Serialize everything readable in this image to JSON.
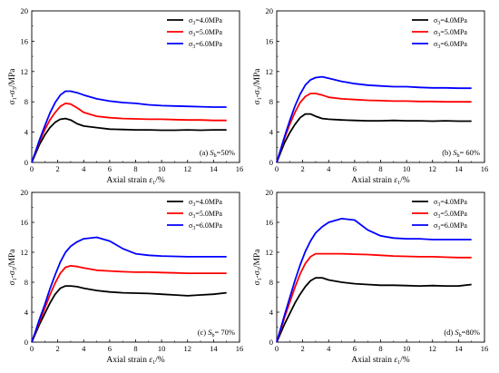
{
  "chart_data": [
    {
      "type": "line",
      "xlabel": "Axial strain ε₁/%",
      "ylabel": "σ₁-σ₃/MPa",
      "xlim": [
        0,
        16
      ],
      "ylim": [
        0,
        20
      ],
      "xticks": [
        0,
        2,
        4,
        6,
        8,
        10,
        12,
        14,
        16
      ],
      "yticks": [
        0,
        4,
        8,
        12,
        16,
        20
      ],
      "annotation": {
        "prefix": "(a) ",
        "var": "S",
        "sub": "b",
        "value": "=50%"
      },
      "legend_position": "top-right",
      "series": [
        {
          "name": "σ3=4.0MPa",
          "color": "#000000",
          "x": [
            0,
            0.3,
            0.6,
            1,
            1.4,
            1.8,
            2.2,
            2.6,
            3,
            3.5,
            4,
            5,
            6,
            7,
            8,
            9,
            10,
            11,
            12,
            13,
            14,
            15
          ],
          "y": [
            0,
            1.2,
            2.4,
            3.6,
            4.6,
            5.3,
            5.7,
            5.8,
            5.6,
            5.1,
            4.8,
            4.6,
            4.4,
            4.35,
            4.3,
            4.3,
            4.25,
            4.25,
            4.3,
            4.25,
            4.3,
            4.3
          ]
        },
        {
          "name": "σ3=5.0MPa",
          "color": "#ff0000",
          "x": [
            0,
            0.3,
            0.6,
            1,
            1.4,
            1.8,
            2.2,
            2.6,
            3,
            3.5,
            4,
            5,
            6,
            7,
            8,
            9,
            10,
            11,
            12,
            13,
            14,
            15
          ],
          "y": [
            0,
            1.4,
            2.8,
            4.3,
            5.6,
            6.6,
            7.4,
            7.8,
            7.7,
            7.2,
            6.6,
            6.1,
            5.9,
            5.8,
            5.75,
            5.7,
            5.7,
            5.65,
            5.6,
            5.6,
            5.55,
            5.55
          ]
        },
        {
          "name": "σ3=6.0MPa",
          "color": "#0000ff",
          "x": [
            0,
            0.3,
            0.6,
            1,
            1.4,
            1.8,
            2.2,
            2.6,
            3,
            3.5,
            4,
            5,
            6,
            7,
            8,
            9,
            10,
            11,
            12,
            13,
            14,
            15
          ],
          "y": [
            0,
            1.5,
            3,
            4.8,
            6.5,
            7.9,
            8.9,
            9.4,
            9.4,
            9.2,
            8.9,
            8.4,
            8.1,
            7.9,
            7.8,
            7.6,
            7.5,
            7.45,
            7.4,
            7.35,
            7.3,
            7.3
          ]
        }
      ]
    },
    {
      "type": "line",
      "xlabel": "Axial strain ε₁/%",
      "ylabel": "σ₁-σ₃/MPa",
      "xlim": [
        0,
        16
      ],
      "ylim": [
        0,
        20
      ],
      "xticks": [
        0,
        2,
        4,
        6,
        8,
        10,
        12,
        14,
        16
      ],
      "yticks": [
        0,
        4,
        8,
        12,
        16,
        20
      ],
      "annotation": {
        "prefix": "(b) ",
        "var": "S",
        "sub": "b",
        "value": "= 60%"
      },
      "legend_position": "top-right",
      "series": [
        {
          "name": "σ3=4.0MPa",
          "color": "#000000",
          "x": [
            0,
            0.3,
            0.6,
            1,
            1.4,
            1.8,
            2.2,
            2.6,
            3,
            3.5,
            4,
            5,
            6,
            7,
            8,
            9,
            10,
            11,
            12,
            13,
            14,
            15
          ],
          "y": [
            0,
            1.3,
            2.6,
            3.9,
            5,
            5.9,
            6.4,
            6.4,
            6.1,
            5.8,
            5.7,
            5.6,
            5.55,
            5.5,
            5.5,
            5.55,
            5.5,
            5.5,
            5.45,
            5.5,
            5.45,
            5.45
          ]
        },
        {
          "name": "σ3=5.0MPa",
          "color": "#ff0000",
          "x": [
            0,
            0.3,
            0.6,
            1,
            1.4,
            1.8,
            2.2,
            2.6,
            3,
            3.5,
            4,
            5,
            6,
            7,
            8,
            9,
            10,
            11,
            12,
            13,
            14,
            15
          ],
          "y": [
            0,
            1.6,
            3.2,
            5,
            6.6,
            7.9,
            8.7,
            9.1,
            9.1,
            8.9,
            8.6,
            8.4,
            8.3,
            8.2,
            8.15,
            8.1,
            8.1,
            8.05,
            8.05,
            8,
            8,
            8
          ]
        },
        {
          "name": "σ3=6.0MPa",
          "color": "#0000ff",
          "x": [
            0,
            0.3,
            0.6,
            1,
            1.4,
            1.8,
            2.2,
            2.6,
            3,
            3.5,
            4,
            5,
            6,
            7,
            8,
            9,
            10,
            11,
            12,
            13,
            14,
            15
          ],
          "y": [
            0,
            1.7,
            3.4,
            5.5,
            7.4,
            9,
            10.2,
            10.9,
            11.2,
            11.3,
            11.1,
            10.7,
            10.4,
            10.2,
            10.1,
            10,
            10,
            9.9,
            9.85,
            9.85,
            9.8,
            9.8
          ]
        }
      ]
    },
    {
      "type": "line",
      "xlabel": "Axial strain ε₁/%",
      "ylabel": "σ₁-σ₃/MPa",
      "xlim": [
        0,
        16
      ],
      "ylim": [
        0,
        20
      ],
      "xticks": [
        0,
        2,
        4,
        6,
        8,
        10,
        12,
        14,
        16
      ],
      "yticks": [
        0,
        4,
        8,
        12,
        16,
        20
      ],
      "annotation": {
        "prefix": "(c) ",
        "var": "S",
        "sub": "b",
        "value": "= 70%"
      },
      "legend_position": "top-right",
      "series": [
        {
          "name": "σ3=4.0MPa",
          "color": "#000000",
          "x": [
            0,
            0.3,
            0.6,
            1,
            1.4,
            1.8,
            2.2,
            2.6,
            3,
            3.5,
            4,
            5,
            6,
            7,
            8,
            9,
            10,
            11,
            12,
            13,
            14,
            15
          ],
          "y": [
            0,
            1.2,
            2.4,
            3.8,
            5.2,
            6.4,
            7.2,
            7.5,
            7.5,
            7.4,
            7.2,
            6.9,
            6.7,
            6.6,
            6.55,
            6.5,
            6.4,
            6.3,
            6.2,
            6.3,
            6.4,
            6.6
          ]
        },
        {
          "name": "σ3=5.0MPa",
          "color": "#ff0000",
          "x": [
            0,
            0.3,
            0.6,
            1,
            1.4,
            1.8,
            2.2,
            2.6,
            3,
            3.5,
            4,
            5,
            6,
            7,
            8,
            9,
            10,
            11,
            12,
            13,
            14,
            15
          ],
          "y": [
            0,
            1.4,
            2.8,
            4.5,
            6.3,
            7.9,
            9.2,
            10,
            10.2,
            10.1,
            9.9,
            9.6,
            9.5,
            9.4,
            9.35,
            9.35,
            9.3,
            9.25,
            9.2,
            9.2,
            9.2,
            9.2
          ]
        },
        {
          "name": "σ3=6.0MPa",
          "color": "#0000ff",
          "x": [
            0,
            0.3,
            0.6,
            1,
            1.4,
            1.8,
            2.2,
            2.6,
            3,
            3.5,
            4,
            5,
            6,
            7,
            8,
            9,
            10,
            11,
            12,
            13,
            14,
            15
          ],
          "y": [
            0,
            1.5,
            3.1,
            5,
            7.1,
            9,
            10.7,
            12,
            12.8,
            13.4,
            13.8,
            14,
            13.5,
            12.5,
            11.8,
            11.6,
            11.5,
            11.45,
            11.4,
            11.4,
            11.4,
            11.4
          ]
        }
      ]
    },
    {
      "type": "line",
      "xlabel": "Axial strain ε₁/%",
      "ylabel": "σ₁-σ₃/MPa",
      "xlim": [
        0,
        16
      ],
      "ylim": [
        0,
        20
      ],
      "xticks": [
        0,
        2,
        4,
        6,
        8,
        10,
        12,
        14,
        16
      ],
      "yticks": [
        0,
        4,
        8,
        12,
        16,
        20
      ],
      "annotation": {
        "prefix": "(d) ",
        "var": "S",
        "sub": "b",
        "value": "=80%"
      },
      "legend_position": "top-right",
      "series": [
        {
          "name": "σ3=4.0MPa",
          "color": "#000000",
          "x": [
            0,
            0.3,
            0.6,
            1,
            1.4,
            1.8,
            2.2,
            2.6,
            3,
            3.5,
            4,
            5,
            6,
            7,
            8,
            9,
            10,
            11,
            12,
            13,
            14,
            15
          ],
          "y": [
            0,
            1.2,
            2.4,
            3.8,
            5.2,
            6.4,
            7.4,
            8.2,
            8.6,
            8.6,
            8.3,
            8,
            7.8,
            7.7,
            7.6,
            7.6,
            7.55,
            7.5,
            7.55,
            7.5,
            7.5,
            7.7
          ]
        },
        {
          "name": "σ3=5.0MPa",
          "color": "#ff0000",
          "x": [
            0,
            0.3,
            0.6,
            1,
            1.4,
            1.8,
            2.2,
            2.6,
            3,
            3.5,
            4,
            5,
            6,
            7,
            8,
            9,
            10,
            11,
            12,
            13,
            14,
            15
          ],
          "y": [
            0,
            1.6,
            3.3,
            5.3,
            7.3,
            9.1,
            10.5,
            11.4,
            11.8,
            11.8,
            11.8,
            11.8,
            11.75,
            11.7,
            11.6,
            11.5,
            11.45,
            11.4,
            11.4,
            11.35,
            11.3,
            11.3
          ]
        },
        {
          "name": "σ3=6.0MPa",
          "color": "#0000ff",
          "x": [
            0,
            0.3,
            0.6,
            1,
            1.4,
            1.8,
            2.2,
            2.6,
            3,
            3.5,
            4,
            5,
            6,
            7,
            8,
            9,
            10,
            11,
            12,
            13,
            14,
            15
          ],
          "y": [
            0,
            1.8,
            3.6,
            5.9,
            8.2,
            10.3,
            12.1,
            13.5,
            14.6,
            15.4,
            16,
            16.5,
            16.3,
            15,
            14.2,
            13.9,
            13.8,
            13.8,
            13.7,
            13.7,
            13.7,
            13.7
          ]
        }
      ]
    }
  ]
}
